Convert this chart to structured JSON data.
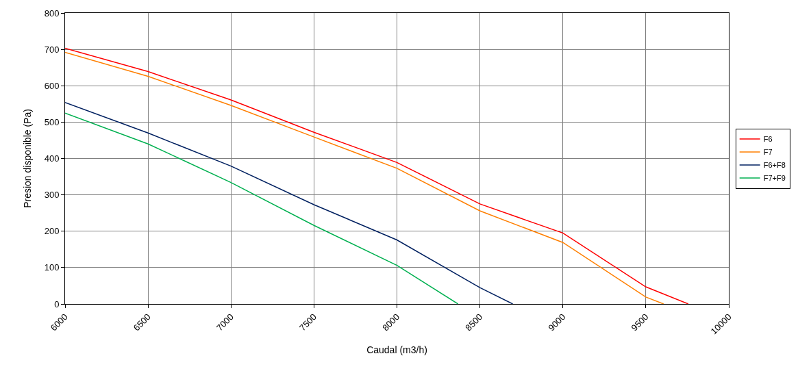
{
  "chart_data": {
    "type": "line",
    "xlabel": "Caudal (m3/h)",
    "ylabel": "Presion disponible (Pa)",
    "xlim": [
      6000,
      10000
    ],
    "xticks": [
      6000,
      6500,
      7000,
      7500,
      8000,
      8500,
      9000,
      9500,
      10000
    ],
    "ylim": [
      0,
      800
    ],
    "yticks": [
      0,
      100,
      200,
      300,
      400,
      500,
      600,
      700,
      800
    ],
    "grid": true,
    "legend": "right",
    "marker": "none",
    "line_style": "solid",
    "series": [
      {
        "name": "F6",
        "color": "#ff0000",
        "x": [
          6000,
          6500,
          7000,
          7500,
          8000,
          8500,
          9000,
          9500,
          9756
        ],
        "values": [
          703,
          639,
          561,
          472,
          389,
          275,
          195,
          47,
          0
        ]
      },
      {
        "name": "F7",
        "color": "#ff7f00",
        "x": [
          6000,
          6500,
          7000,
          7500,
          8000,
          8500,
          9000,
          9500,
          9607
        ],
        "values": [
          692,
          626,
          546,
          459,
          373,
          256,
          169,
          19,
          0
        ]
      },
      {
        "name": "F6+F8",
        "color": "#002060",
        "x": [
          6000,
          6500,
          7000,
          7500,
          8000,
          8500,
          8698
        ],
        "values": [
          554,
          470,
          379,
          273,
          176,
          45,
          0
        ]
      },
      {
        "name": "F7+F9",
        "color": "#00b050",
        "x": [
          6000,
          6500,
          7000,
          7500,
          8000,
          8368
        ],
        "values": [
          525,
          440,
          334,
          216,
          106,
          0
        ]
      }
    ]
  }
}
